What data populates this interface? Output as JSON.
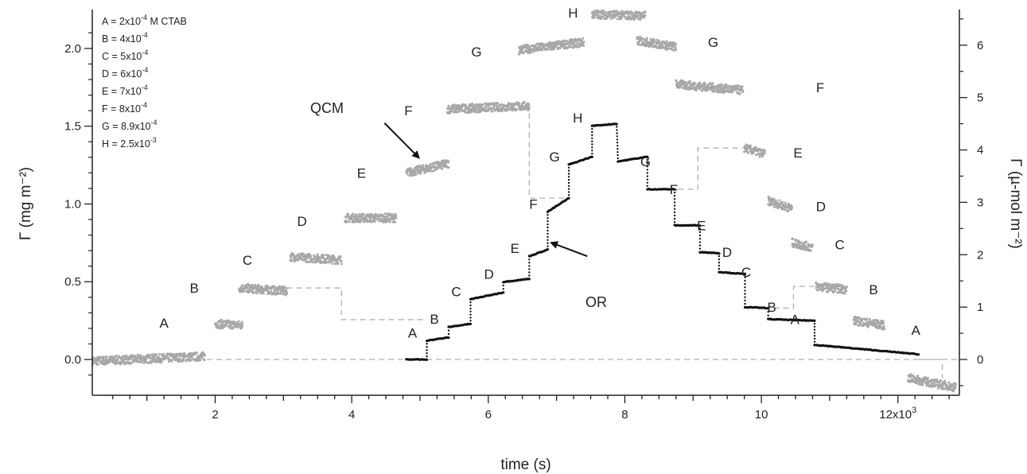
{
  "chart_data": {
    "type": "scatter",
    "title": "",
    "xlabel": "time (s)",
    "ylabel": "Γ (mg m⁻²)",
    "y2label": "Γ (µ-mol m⁻²)",
    "xlim": [
      200,
      12900
    ],
    "ylim": [
      -0.23,
      2.25
    ],
    "y2lim": [
      -0.683,
      6.68
    ],
    "x_ticks": [
      {
        "value": 2000,
        "label": "2"
      },
      {
        "value": 4000,
        "label": "4"
      },
      {
        "value": 6000,
        "label": "6"
      },
      {
        "value": 8000,
        "label": "8"
      },
      {
        "value": 10000,
        "label": "10"
      },
      {
        "value": 12000,
        "label": "12x10³"
      }
    ],
    "y_ticks": [
      "0.0",
      "0.5",
      "1.0",
      "1.5",
      "2.0"
    ],
    "y2_ticks": [
      "0",
      "1",
      "2",
      "3",
      "4",
      "5",
      "6"
    ],
    "grid": false,
    "legend": [
      "A = 2x10⁻⁴ M CTAB",
      "B = 4x10⁻⁴",
      "C = 5x10⁻⁴",
      "D = 6x10⁻⁴",
      "E = 7x10⁻⁴",
      "F = 8x10⁻⁴",
      "G = 8.9x10⁻⁴",
      "H = 2.5x10⁻³"
    ],
    "legend_position": "top-left",
    "colors": {
      "qcm": "#a8a8a8",
      "or": "#111111",
      "zero_line": "#b0b0b0",
      "connector": "#b0b0b0"
    },
    "series": [
      {
        "name": "QCM",
        "axis": "left",
        "style": "gray-scatter",
        "segments": [
          {
            "label": "",
            "x0": 200,
            "x1": 1850,
            "y0": -0.01,
            "y1": 0.02
          },
          {
            "label": "A",
            "x0": 2000,
            "x1": 2400,
            "y0": 0.23,
            "y1": 0.22
          },
          {
            "label": "B",
            "x0": 2350,
            "x1": 3050,
            "y0": 0.46,
            "y1": 0.44
          },
          {
            "label": "C",
            "x0": 3100,
            "x1": 3850,
            "y0": 0.66,
            "y1": 0.64
          },
          {
            "label": "D",
            "x0": 3900,
            "x1": 4650,
            "y0": 0.91,
            "y1": 0.91
          },
          {
            "label": "E",
            "x0": 4800,
            "x1": 5420,
            "y0": 1.2,
            "y1": 1.26
          },
          {
            "label": "F",
            "x0": 5400,
            "x1": 6600,
            "y0": 1.61,
            "y1": 1.63
          },
          {
            "label": "G",
            "x0": 6450,
            "x1": 7400,
            "y0": 1.99,
            "y1": 2.04
          },
          {
            "label": "H",
            "x0": 7520,
            "x1": 8300,
            "y0": 2.22,
            "y1": 2.21
          },
          {
            "label": "G",
            "x0": 8180,
            "x1": 8750,
            "y0": 2.05,
            "y1": 2.01
          },
          {
            "label": "F",
            "x0": 8750,
            "x1": 9730,
            "y0": 1.77,
            "y1": 1.73
          },
          {
            "label": "E",
            "x0": 9750,
            "x1": 10050,
            "y0": 1.36,
            "y1": 1.32
          },
          {
            "label": "D",
            "x0": 10100,
            "x1": 10450,
            "y0": 1.02,
            "y1": 0.97
          },
          {
            "label": "C",
            "x0": 10450,
            "x1": 10750,
            "y0": 0.75,
            "y1": 0.72
          },
          {
            "label": "B",
            "x0": 10800,
            "x1": 11250,
            "y0": 0.47,
            "y1": 0.45
          },
          {
            "label": "A",
            "x0": 11350,
            "x1": 11800,
            "y0": 0.25,
            "y1": 0.22
          },
          {
            "label": "",
            "x0": 12150,
            "x1": 12850,
            "y0": -0.12,
            "y1": -0.18
          }
        ]
      },
      {
        "name": "OR",
        "axis": "right",
        "style": "black-steps",
        "steps": [
          {
            "label": "",
            "x0": 4800,
            "x1": 5100,
            "y0": 0.0,
            "y1": 0.0
          },
          {
            "label": "A",
            "x0": 5100,
            "x1": 5420,
            "y0": 0.36,
            "y1": 0.42
          },
          {
            "label": "B",
            "x0": 5420,
            "x1": 5740,
            "y0": 0.62,
            "y1": 0.68
          },
          {
            "label": "C",
            "x0": 5740,
            "x1": 6220,
            "y0": 1.15,
            "y1": 1.28
          },
          {
            "label": "D",
            "x0": 6220,
            "x1": 6600,
            "y0": 1.48,
            "y1": 1.54
          },
          {
            "label": "E",
            "x0": 6600,
            "x1": 6870,
            "y0": 1.97,
            "y1": 2.1
          },
          {
            "label": "F",
            "x0": 6870,
            "x1": 7180,
            "y0": 2.82,
            "y1": 3.08
          },
          {
            "label": "G",
            "x0": 7180,
            "x1": 7520,
            "y0": 3.72,
            "y1": 3.87
          },
          {
            "label": "H",
            "x0": 7520,
            "x1": 7880,
            "y0": 4.46,
            "y1": 4.5
          },
          {
            "label": "G",
            "x0": 7900,
            "x1": 8330,
            "y0": 3.78,
            "y1": 3.87
          },
          {
            "label": "F",
            "x0": 8330,
            "x1": 8730,
            "y0": 3.25,
            "y1": 3.25
          },
          {
            "label": "E",
            "x0": 8730,
            "x1": 9100,
            "y0": 2.56,
            "y1": 2.56
          },
          {
            "label": "D",
            "x0": 9100,
            "x1": 9380,
            "y0": 2.05,
            "y1": 2.03
          },
          {
            "label": "C",
            "x0": 9380,
            "x1": 9760,
            "y0": 1.67,
            "y1": 1.63
          },
          {
            "label": "B",
            "x0": 9760,
            "x1": 10100,
            "y0": 1.0,
            "y1": 0.98
          },
          {
            "label": "A",
            "x0": 10100,
            "x1": 10780,
            "y0": 0.77,
            "y1": 0.74
          },
          {
            "label": "",
            "x0": 10780,
            "x1": 12300,
            "y0": 0.28,
            "y1": 0.1
          }
        ]
      }
    ],
    "annotations": [
      {
        "text": "QCM",
        "arrow_from": [
          5750,
          1.55
        ],
        "arrow_to": [
          4790,
          1.28
        ]
      },
      {
        "text": "OR",
        "arrow_from": [
          7760,
          2.05
        ],
        "arrow_to": [
          6880,
          2.19
        ]
      }
    ]
  }
}
